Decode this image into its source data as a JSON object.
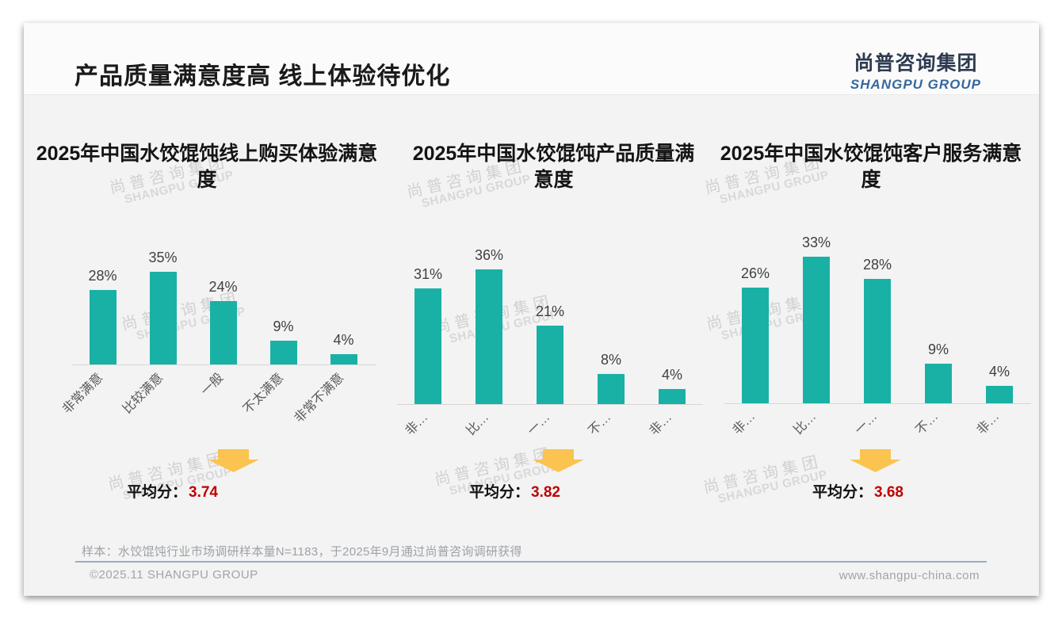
{
  "page": {
    "title": "产品质量满意度高 线上体验待优化",
    "logo": {
      "cn": "尚普咨询集团",
      "en": "SHANGPU GROUP"
    },
    "watermark": {
      "cn": "尚普咨询集团",
      "en": "SHANGPU GROUP"
    },
    "footer_note": "样本：水饺馄饨行业市场调研样本量N=1183，于2025年9月通过尚普咨询调研获得",
    "footer_left": "©2025.11 SHANGPU GROUP",
    "footer_right": "www.shangpu-china.com"
  },
  "colors": {
    "bar": "#19b1a5",
    "arrow": "#fbc34f",
    "score": "#c00000"
  },
  "chart_data": [
    {
      "type": "bar",
      "title": "2025年中国水饺馄饨线上购买体验满意度",
      "categories": [
        "非常满意",
        "比较满意",
        "一般",
        "不太满意",
        "非常不满意"
      ],
      "categories_display": [
        "非常满意",
        "比较满意",
        "一般",
        "不太满意",
        "非常不满意"
      ],
      "values": [
        28,
        35,
        24,
        9,
        4
      ],
      "unit": "%",
      "ylim": [
        0,
        50
      ],
      "average_label": "平均分：",
      "average": "3.74"
    },
    {
      "type": "bar",
      "title": "2025年中国水饺馄饨产品质量满意度",
      "categories": [
        "非常满意",
        "比较满意",
        "一般",
        "不太满意",
        "非常不满意"
      ],
      "categories_display": [
        "非…",
        "比…",
        "一…",
        "不…",
        "非…"
      ],
      "values": [
        31,
        36,
        21,
        8,
        4
      ],
      "unit": "%",
      "ylim": [
        0,
        46
      ],
      "average_label": "平均分：",
      "average": "3.82"
    },
    {
      "type": "bar",
      "title": "2025年中国水饺馄饨客户服务满意度",
      "categories": [
        "非常满意",
        "比较满意",
        "一般",
        "不太满意",
        "非常不满意"
      ],
      "categories_display": [
        "非…",
        "比…",
        "一…",
        "不…",
        "非…"
      ],
      "values": [
        26,
        33,
        28,
        9,
        4
      ],
      "unit": "%",
      "ylim": [
        0,
        38.5
      ],
      "average_label": "平均分：",
      "average": "3.68"
    }
  ]
}
